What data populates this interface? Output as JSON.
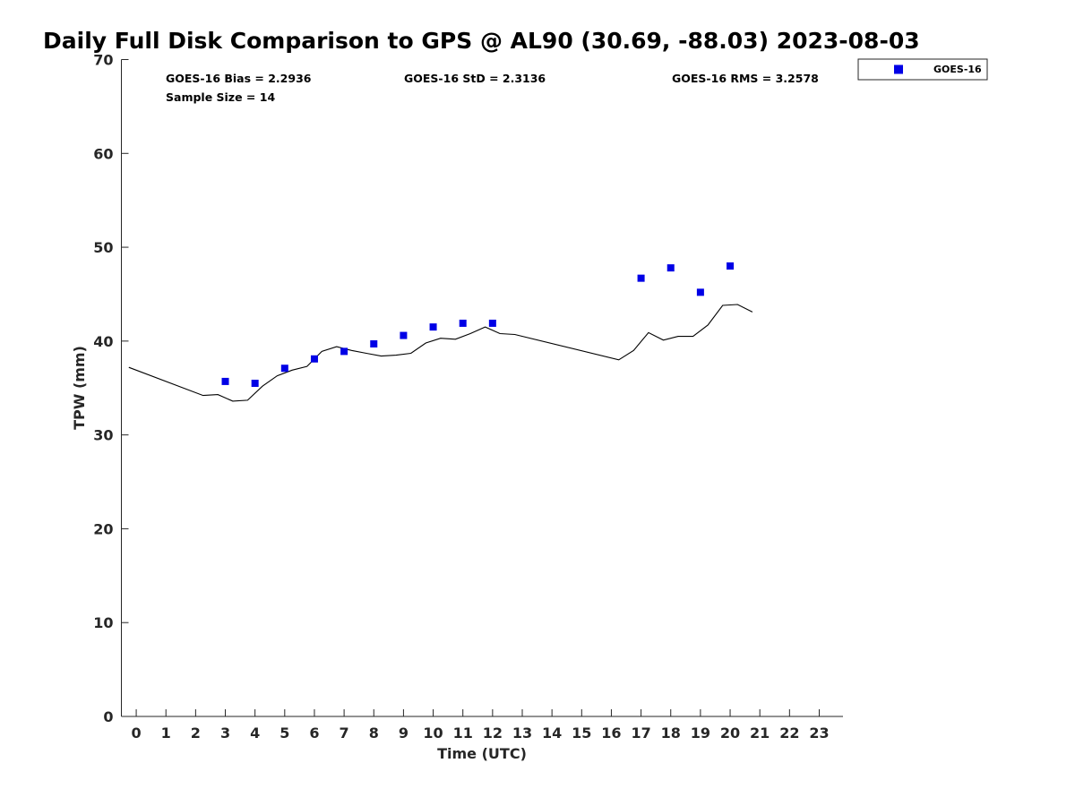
{
  "chart_data": {
    "type": "scatter",
    "title": "Daily Full Disk Comparison to GPS @ AL90 (30.69, -88.03) 2023-08-03",
    "xlabel": "Time (UTC)",
    "ylabel": "TPW (mm)",
    "xlim": [
      -0.5,
      23.8
    ],
    "ylim": [
      0,
      70
    ],
    "x_ticks": [
      "0",
      "1",
      "2",
      "3",
      "4",
      "5",
      "6",
      "7",
      "8",
      "9",
      "10",
      "11",
      "12",
      "13",
      "14",
      "15",
      "16",
      "17",
      "18",
      "19",
      "20",
      "21",
      "22",
      "23"
    ],
    "y_ticks": [
      "0",
      "10",
      "20",
      "30",
      "40",
      "50",
      "60",
      "70"
    ],
    "grid": false,
    "legend_position": "outside-top-right",
    "annotations": [
      "GOES-16 Bias = 2.2936",
      "GOES-16 StD = 2.3136",
      "GOES-16 RMS = 3.2578",
      "Sample Size = 14"
    ],
    "series": [
      {
        "name": "GOES-16",
        "mark": "square",
        "color": "#0000e6",
        "x": [
          3,
          4,
          5,
          6,
          7,
          8,
          9,
          10,
          11,
          12,
          17,
          18,
          19,
          20
        ],
        "y": [
          35.7,
          35.5,
          37.1,
          38.1,
          38.9,
          39.7,
          40.6,
          41.5,
          41.9,
          41.9,
          46.7,
          47.8,
          45.2,
          48.0
        ]
      },
      {
        "mark": "line",
        "color": "#000000",
        "x": [
          -0.25,
          2.25,
          2.75,
          3.25,
          3.75,
          4.25,
          4.75,
          5.25,
          5.75,
          6.25,
          6.75,
          7.25,
          7.75,
          8.25,
          8.75,
          9.25,
          9.75,
          10.25,
          10.75,
          11.25,
          11.75,
          12.25,
          12.75,
          16.25,
          16.75,
          17.25,
          17.75,
          18.25,
          18.75,
          19.25,
          19.75,
          20.25,
          20.75
        ],
        "y": [
          37.2,
          34.2,
          34.3,
          33.6,
          33.7,
          35.2,
          36.3,
          36.9,
          37.3,
          38.9,
          39.4,
          39.0,
          38.7,
          38.4,
          38.5,
          38.7,
          39.8,
          40.3,
          40.2,
          40.8,
          41.5,
          40.8,
          40.7,
          38.0,
          39.0,
          40.9,
          40.1,
          40.5,
          40.5,
          41.7,
          43.8,
          43.9,
          43.1
        ]
      }
    ]
  }
}
